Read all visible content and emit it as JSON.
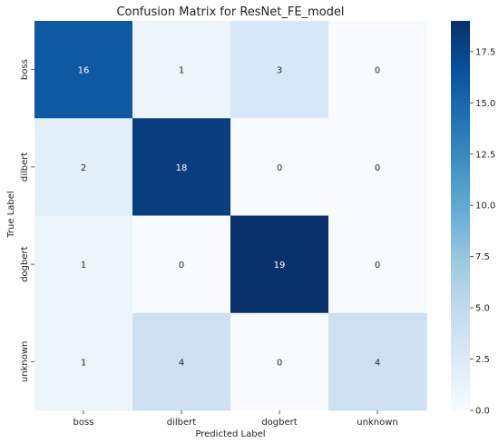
{
  "chart_data": {
    "type": "heatmap",
    "title": "Confusion Matrix for ResNet_FE_model",
    "xlabel": "Predicted Label",
    "ylabel": "True Label",
    "x_categories": [
      "boss",
      "dilbert",
      "dogbert",
      "unknown"
    ],
    "y_categories": [
      "boss",
      "dilbert",
      "dogbert",
      "unknown"
    ],
    "values": [
      [
        16,
        1,
        3,
        0
      ],
      [
        2,
        18,
        0,
        0
      ],
      [
        1,
        0,
        19,
        0
      ],
      [
        1,
        4,
        0,
        4
      ]
    ],
    "colorbar": {
      "min": 0,
      "max": 19,
      "ticks": [
        "0.0",
        "2.5",
        "5.0",
        "7.5",
        "10.0",
        "12.5",
        "15.0",
        "17.5"
      ],
      "colormap": "Blues"
    }
  }
}
